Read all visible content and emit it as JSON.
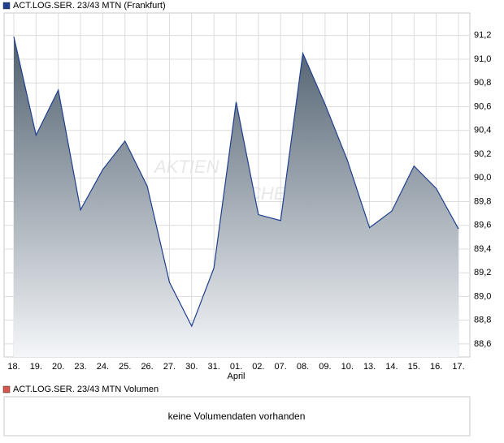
{
  "chart_data": {
    "type": "area",
    "title": "ACT.LOG.SER. 23/43 MTN (Frankfurt)",
    "legend_color": "#1f3f8f",
    "watermark": [
      "AKTIEN",
      "CHECK"
    ],
    "categories": [
      "18.",
      "19.",
      "20.",
      "23.",
      "24.",
      "25.",
      "26.",
      "27.",
      "30.",
      "31.",
      "01.",
      "02.",
      "07.",
      "08.",
      "09.",
      "10.",
      "13.",
      "14.",
      "15.",
      "16.",
      "17."
    ],
    "month_labels": [
      {
        "index": 10,
        "label": "April"
      }
    ],
    "series": [
      {
        "name": "ACT.LOG.SER. 23/43 MTN",
        "color": "#1f3f8f",
        "values": [
          91.19,
          90.36,
          90.74,
          89.73,
          90.07,
          90.31,
          89.93,
          89.12,
          88.75,
          89.24,
          90.64,
          89.69,
          89.64,
          91.05,
          90.62,
          90.15,
          89.58,
          89.72,
          90.1,
          89.91,
          89.57
        ]
      }
    ],
    "ylim": [
      88.49,
      91.39
    ],
    "yticks": [
      {
        "value": 88.6,
        "label": "88,6"
      },
      {
        "value": 88.8,
        "label": "88,8"
      },
      {
        "value": 89.0,
        "label": "89,0"
      },
      {
        "value": 89.2,
        "label": "89,2"
      },
      {
        "value": 89.4,
        "label": "89,4"
      },
      {
        "value": 89.6,
        "label": "89,6"
      },
      {
        "value": 89.8,
        "label": "89,8"
      },
      {
        "value": 90.0,
        "label": "90,0"
      },
      {
        "value": 90.2,
        "label": "90,2"
      },
      {
        "value": 90.4,
        "label": "90,4"
      },
      {
        "value": 90.6,
        "label": "90,6"
      },
      {
        "value": 90.8,
        "label": "90,8"
      },
      {
        "value": 91.0,
        "label": "91,0"
      },
      {
        "value": 91.2,
        "label": "91,2"
      }
    ],
    "grid": true
  },
  "volume_panel": {
    "title": "ACT.LOG.SER. 23/43 MTN Volumen",
    "legend_color": "#d9534f",
    "message": "keine Volumendaten vorhanden"
  }
}
